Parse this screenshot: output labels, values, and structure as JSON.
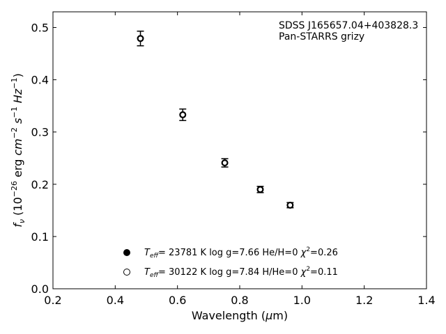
{
  "chart_data": {
    "type": "scatter",
    "xlabel": "Wavelength (μm)",
    "ylabel": "f_ν (10^-26 erg cm^-2 s^-1 Hz^-1)",
    "xlim": [
      0.2,
      1.4
    ],
    "ylim": [
      0.0,
      0.53
    ],
    "xticks": [
      0.2,
      0.4,
      0.6,
      0.8,
      1.0,
      1.2,
      1.4
    ],
    "xtick_labels": [
      "0.2",
      "0.4",
      "0.6",
      "0.8",
      "1.0",
      "1.2",
      "1.4"
    ],
    "yticks": [
      0.0,
      0.1,
      0.2,
      0.3,
      0.4,
      0.5
    ],
    "ytick_labels": [
      "0.0",
      "0.1",
      "0.2",
      "0.3",
      "0.4",
      "0.5"
    ],
    "grid": false,
    "annotations": [
      "SDSS J165657.04+403828.3",
      "Pan-STARRS grizy"
    ],
    "series": [
      {
        "marker": "filled-circle",
        "x": [
          0.481,
          0.617,
          0.752,
          0.866,
          0.962
        ],
        "y": [
          0.479,
          0.333,
          0.241,
          0.19,
          0.16
        ],
        "yerr": [
          0.014,
          0.011,
          0.008,
          0.006,
          0.005
        ]
      },
      {
        "marker": "open-circle",
        "x": [
          0.481,
          0.617,
          0.752,
          0.866,
          0.962
        ],
        "y": [
          0.479,
          0.333,
          0.241,
          0.19,
          0.16
        ],
        "yerr": [
          0.014,
          0.011,
          0.008,
          0.006,
          0.005
        ]
      }
    ],
    "legend": [
      {
        "marker": "filled-circle",
        "teff_value": "= 23781 K",
        "logg": "log g=7.66",
        "comp": "He/H=0",
        "chi2_value": "=0.26"
      },
      {
        "marker": "open-circle",
        "teff_value": "= 30122 K",
        "logg": "log g=7.84",
        "comp": "H/He=0",
        "chi2_value": "=0.11"
      }
    ],
    "legend_position": "bottom-center"
  }
}
